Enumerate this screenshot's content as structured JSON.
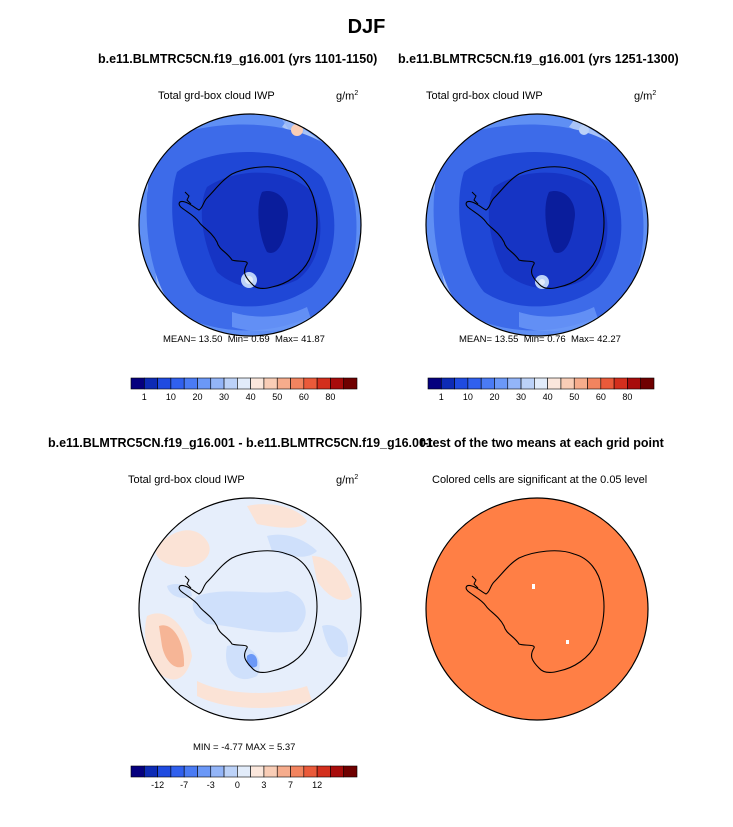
{
  "title": "DJF",
  "panels": [
    {
      "case": "b.e11.BLMTRC5CN.f19_g16.001 (yrs 1101-1150)",
      "variable": "Total grd-box cloud IWP",
      "units": "g/m",
      "units_sup": "2",
      "stats": {
        "mean_label": "MEAN=",
        "mean": "13.50",
        "min_label": "Min=",
        "min": "0.69",
        "max_label": "Max=",
        "max": "41.87"
      }
    },
    {
      "case": "b.e11.BLMTRC5CN.f19_g16.001 (yrs 1251-1300)",
      "variable": "Total grd-box cloud IWP",
      "units": "g/m",
      "units_sup": "2",
      "stats": {
        "mean_label": "MEAN=",
        "mean": "13.55",
        "min_label": "Min=",
        "min": "0.76",
        "max_label": "Max=",
        "max": "42.27"
      }
    },
    {
      "case": "b.e11.BLMTRC5CN.f19_g16.001 - b.e11.BLMTRC5CN.f19_g16.001",
      "variable": "Total grd-box cloud IWP",
      "units": "g/m",
      "units_sup": "2",
      "stats": {
        "min_label": "MIN =",
        "min": "-4.77",
        "max_label": "MAX =",
        "max": "5.37"
      }
    },
    {
      "case": "t-test of the two means at each grid point",
      "note": "Colored cells are significant at the 0.05 level"
    }
  ],
  "colorbars": {
    "abs": {
      "colors": [
        "#05007e",
        "#0d2bb5",
        "#1f4be0",
        "#3060ee",
        "#4a7bf4",
        "#6b98f7",
        "#93b5f8",
        "#bcd2f8",
        "#e2ecfa",
        "#fbe7dc",
        "#f9cdb6",
        "#f6ac8c",
        "#f2845f",
        "#ea5a3a",
        "#d32f1d",
        "#a80c0b",
        "#6f0000"
      ],
      "tick_labels": [
        "1",
        "10",
        "20",
        "30",
        "40",
        "50",
        "60",
        "80"
      ],
      "tick_positions": [
        1,
        3,
        5,
        7,
        9,
        11,
        13,
        15
      ]
    },
    "diff": {
      "colors": [
        "#05007e",
        "#0d2bb5",
        "#1f4be0",
        "#3060ee",
        "#4a7bf4",
        "#6b98f7",
        "#93b5f8",
        "#bcd2f8",
        "#e2ecfa",
        "#fbe7dc",
        "#f9cdb6",
        "#f6ac8c",
        "#f2845f",
        "#ea5a3a",
        "#d32f1d",
        "#a80c0b",
        "#6f0000"
      ],
      "tick_labels": [
        "-12",
        "-7",
        "-3",
        "0",
        "3",
        "7",
        "12"
      ],
      "tick_positions": [
        2,
        4,
        6,
        8,
        10,
        12,
        14
      ]
    }
  },
  "map_colors": {
    "abs_ocean_outer": "#5f8ff4",
    "abs_ocean_mid": "#3d6be9",
    "abs_ice_edge": "#1f47d6",
    "abs_continent": "#1634c4",
    "abs_interior": "#0a1d9c",
    "abs_light_band": "#a8c3f7",
    "diff_background": "#e6eefb",
    "diff_pos": "#fbe3d6",
    "diff_neg": "#cfe0fb",
    "diff_pos_strong": "#f6b596",
    "ttest_fill": "#ff7f45",
    "coast": "#000000"
  }
}
